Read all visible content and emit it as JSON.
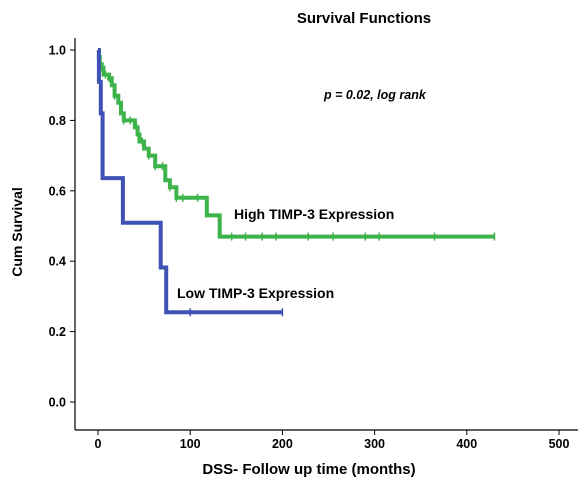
{
  "chart_data": {
    "type": "line",
    "title": "Survival Functions",
    "xlabel": "DSS- Follow up time (months)",
    "ylabel": "Cum Survival",
    "xlim": [
      -12,
      512
    ],
    "ylim": [
      -0.05,
      1.05
    ],
    "xticks": [
      0,
      100,
      200,
      300,
      400,
      500
    ],
    "yticks": [
      0.0,
      0.2,
      0.4,
      0.6,
      0.8,
      1.0
    ],
    "xtick_labels": [
      "0",
      "100",
      "200",
      "300",
      "400",
      "500"
    ],
    "ytick_labels": [
      "0.0",
      "0.2",
      "0.4",
      "0.6",
      "0.8",
      "1.0"
    ],
    "grid": false,
    "legend": "none",
    "annotation": "p = 0.02, log rank",
    "curve_style": "step",
    "series": [
      {
        "name": "High TIMP-3 Expression",
        "color": "#3cb44b",
        "x": [
          0,
          1,
          2,
          4,
          6,
          12,
          15,
          18,
          22,
          25,
          28,
          40,
          43,
          45,
          50,
          55,
          62,
          73,
          78,
          85,
          100,
          108,
          118,
          132,
          430
        ],
        "y": [
          1.0,
          0.98,
          0.96,
          0.95,
          0.93,
          0.92,
          0.9,
          0.87,
          0.85,
          0.82,
          0.8,
          0.78,
          0.76,
          0.74,
          0.72,
          0.7,
          0.67,
          0.63,
          0.61,
          0.58,
          0.58,
          0.58,
          0.53,
          0.47,
          0.47
        ],
        "censor_x": [
          2,
          4,
          8,
          12,
          18,
          28,
          35,
          42,
          48,
          55,
          62,
          70,
          78,
          85,
          92,
          108,
          145,
          160,
          178,
          193,
          228,
          255,
          290,
          305,
          365,
          430
        ],
        "censor_y": [
          0.96,
          0.95,
          0.93,
          0.92,
          0.87,
          0.8,
          0.8,
          0.78,
          0.74,
          0.7,
          0.67,
          0.67,
          0.61,
          0.58,
          0.58,
          0.58,
          0.47,
          0.47,
          0.47,
          0.47,
          0.47,
          0.47,
          0.47,
          0.47,
          0.47,
          0.47
        ]
      },
      {
        "name": "Low TIMP-3 Expression",
        "color": "#3f51b5",
        "x": [
          0,
          1,
          3,
          5,
          27,
          68,
          74,
          200
        ],
        "y": [
          1.0,
          0.91,
          0.82,
          0.636,
          0.509,
          0.382,
          0.255,
          0.255
        ],
        "censor_x": [
          0,
          2,
          100,
          200
        ],
        "censor_y": [
          0.98,
          0.88,
          0.255,
          0.255
        ]
      }
    ]
  }
}
